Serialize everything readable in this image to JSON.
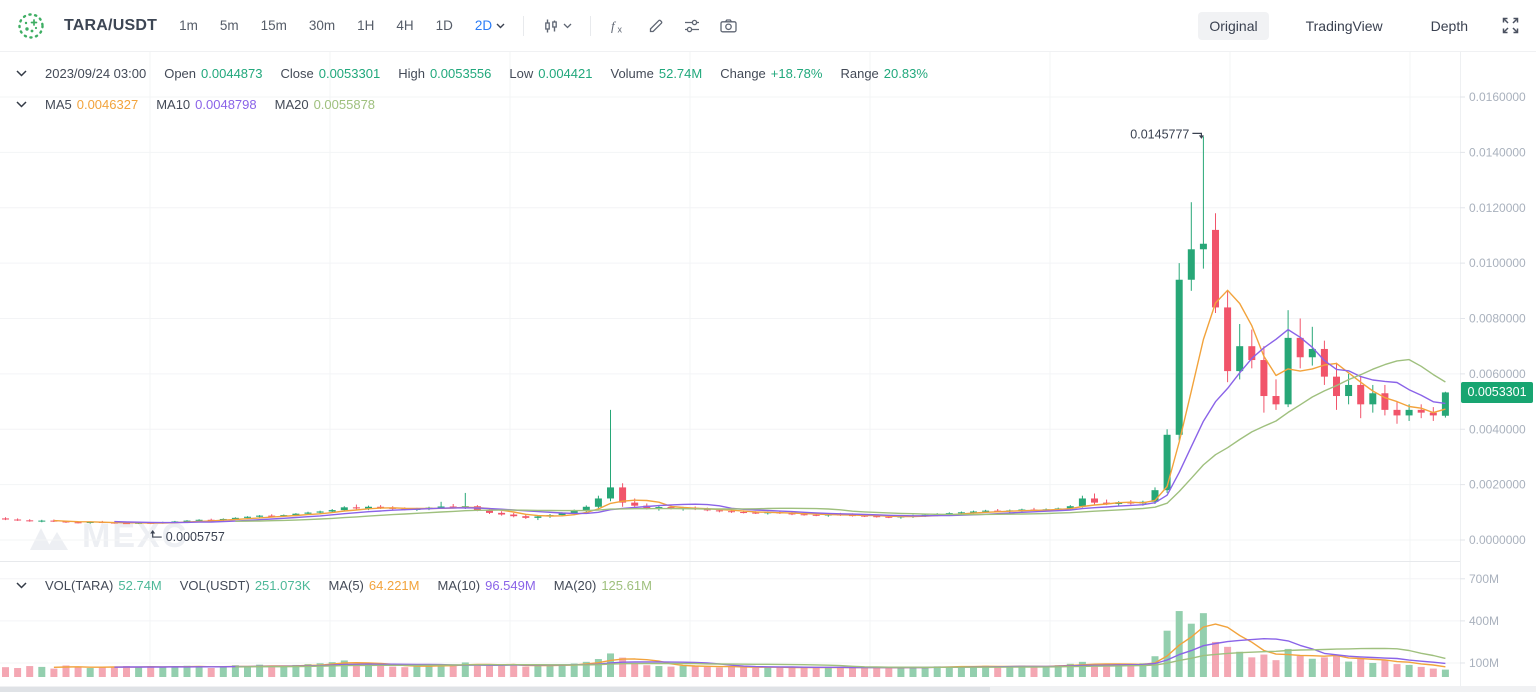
{
  "toolbar": {
    "pair": "TARA/USDT",
    "timeframes": [
      "1m",
      "5m",
      "15m",
      "30m",
      "1H",
      "4H",
      "1D",
      "2D"
    ],
    "selected_timeframe": "2D",
    "view_tabs": [
      {
        "label": "Original",
        "active": true
      },
      {
        "label": "TradingView",
        "active": false
      },
      {
        "label": "Depth",
        "active": false
      }
    ]
  },
  "ohlc_row": {
    "timestamp": "2023/09/24 03:00",
    "items": [
      {
        "label": "Open",
        "value": "0.0044873"
      },
      {
        "label": "Close",
        "value": "0.0053301"
      },
      {
        "label": "High",
        "value": "0.0053556"
      },
      {
        "label": "Low",
        "value": "0.004421"
      },
      {
        "label": "Volume",
        "value": "52.74M"
      },
      {
        "label": "Change",
        "value": "+18.78%"
      },
      {
        "label": "Range",
        "value": "20.83%"
      }
    ]
  },
  "ma_row": {
    "items": [
      {
        "label": "MA5",
        "value": "0.0046327",
        "color": "#f2a33c"
      },
      {
        "label": "MA10",
        "value": "0.0048798",
        "color": "#8a63e8"
      },
      {
        "label": "MA20",
        "value": "0.0055878",
        "color": "#9fc07e"
      }
    ]
  },
  "vol_row": {
    "items": [
      {
        "label": "VOL(TARA)",
        "value": "52.74M",
        "color": "#4db898"
      },
      {
        "label": "VOL(USDT)",
        "value": "251.073K",
        "color": "#4db898"
      },
      {
        "label": "MA(5)",
        "value": "64.221M",
        "color": "#f2a33c"
      },
      {
        "label": "MA(10)",
        "value": "96.549M",
        "color": "#8a63e8"
      },
      {
        "label": "MA(20)",
        "value": "125.61M",
        "color": "#9fc07e"
      }
    ]
  },
  "watermark_text": "MEXC",
  "colors": {
    "up": "#27a777",
    "down": "#f1546a",
    "vol_up": "#93cfae",
    "vol_down": "#f4a7b3",
    "ma5": "#f2a33c",
    "ma10": "#8a63e8",
    "ma20": "#9fc07e",
    "accent_blue": "#2a7cf7",
    "value_green": "#21a87c",
    "badge_green": "#18a571",
    "axis_text": "#a9b1bd",
    "grid": "#f3f4f6"
  },
  "chart_data": {
    "type": "candlestick",
    "title": "TARA/USDT 2D",
    "interval": "2D",
    "price_axis": {
      "min": 0,
      "max": 0.016,
      "ticks": [
        {
          "value": 0.016,
          "label": "0.0160000"
        },
        {
          "value": 0.014,
          "label": "0.0140000"
        },
        {
          "value": 0.012,
          "label": "0.0120000"
        },
        {
          "value": 0.01,
          "label": "0.0100000"
        },
        {
          "value": 0.008,
          "label": "0.0080000"
        },
        {
          "value": 0.006,
          "label": "0.0060000"
        },
        {
          "value": 0.004,
          "label": "0.0040000"
        },
        {
          "value": 0.002,
          "label": "0.0020000"
        },
        {
          "value": 0.0,
          "label": "0.0000000"
        }
      ]
    },
    "volume_axis": {
      "unit": "M",
      "ticks": [
        {
          "value": 700,
          "label": "700M"
        },
        {
          "value": 400,
          "label": "400M"
        },
        {
          "value": 100,
          "label": "100M"
        }
      ]
    },
    "annotations": {
      "high": {
        "label": "0.0145777",
        "value": 0.0145777
      },
      "low": {
        "label": "0.0005757",
        "value": 0.0005757
      }
    },
    "last_price": {
      "value": 0.0053301,
      "label": "0.0053301"
    },
    "ma_overlays": [
      {
        "period": 5,
        "color_key": "ma5"
      },
      {
        "period": 10,
        "color_key": "ma10"
      },
      {
        "period": 20,
        "color_key": "ma20"
      }
    ],
    "candles_format": [
      "open",
      "high",
      "low",
      "close",
      "volume_M"
    ],
    "candles": [
      [
        0.00078,
        0.00082,
        0.00072,
        0.00074,
        70
      ],
      [
        0.00074,
        0.00078,
        0.00069,
        0.00071,
        64
      ],
      [
        0.00071,
        0.00075,
        0.00066,
        0.00068,
        78
      ],
      [
        0.00068,
        0.00073,
        0.00064,
        0.0007,
        72
      ],
      [
        0.0007,
        0.00074,
        0.00065,
        0.00067,
        60
      ],
      [
        0.00067,
        0.0007,
        0.00062,
        0.00064,
        82
      ],
      [
        0.00064,
        0.00068,
        0.0006,
        0.00062,
        70
      ],
      [
        0.00062,
        0.00067,
        0.00059,
        0.00065,
        64
      ],
      [
        0.00065,
        0.00069,
        0.00061,
        0.00063,
        74
      ],
      [
        0.00063,
        0.00066,
        0.00059,
        0.00061,
        68
      ],
      [
        0.00061,
        0.00065,
        0.00058,
        0.0006,
        78
      ],
      [
        0.0006,
        0.00064,
        0.00058,
        0.00062,
        70
      ],
      [
        0.00062,
        0.00064,
        0.0005757,
        0.0006,
        76
      ],
      [
        0.0006,
        0.00066,
        0.00059,
        0.00064,
        68
      ],
      [
        0.00064,
        0.00069,
        0.00062,
        0.00067,
        74
      ],
      [
        0.00067,
        0.00072,
        0.00064,
        0.0007,
        80
      ],
      [
        0.0007,
        0.00075,
        0.00067,
        0.00073,
        76
      ],
      [
        0.00073,
        0.00077,
        0.00069,
        0.00071,
        64
      ],
      [
        0.00071,
        0.00078,
        0.00068,
        0.00076,
        72
      ],
      [
        0.00076,
        0.00082,
        0.00073,
        0.0008,
        84
      ],
      [
        0.0008,
        0.00086,
        0.00077,
        0.00084,
        78
      ],
      [
        0.00084,
        0.0009,
        0.0008,
        0.00088,
        88
      ],
      [
        0.00088,
        0.00093,
        0.00084,
        0.00086,
        70
      ],
      [
        0.00086,
        0.00092,
        0.00083,
        0.0009,
        76
      ],
      [
        0.0009,
        0.00097,
        0.00087,
        0.00095,
        86
      ],
      [
        0.00095,
        0.00102,
        0.00091,
        0.00099,
        92
      ],
      [
        0.00099,
        0.00106,
        0.00095,
        0.00103,
        98
      ],
      [
        0.00103,
        0.00112,
        0.00098,
        0.00108,
        106
      ],
      [
        0.00108,
        0.00122,
        0.00104,
        0.00118,
        118
      ],
      [
        0.00118,
        0.00128,
        0.0011,
        0.00114,
        94
      ],
      [
        0.00114,
        0.00124,
        0.00108,
        0.0012,
        88
      ],
      [
        0.0012,
        0.00126,
        0.00112,
        0.00116,
        80
      ],
      [
        0.00116,
        0.00122,
        0.0011,
        0.00113,
        74
      ],
      [
        0.00113,
        0.00118,
        0.00107,
        0.0011,
        70
      ],
      [
        0.0011,
        0.00116,
        0.00105,
        0.00112,
        78
      ],
      [
        0.00112,
        0.0012,
        0.00108,
        0.00117,
        84
      ],
      [
        0.00117,
        0.00138,
        0.00112,
        0.00121,
        92
      ],
      [
        0.00121,
        0.0013,
        0.00114,
        0.00118,
        78
      ],
      [
        0.00118,
        0.0017,
        0.00112,
        0.00122,
        104
      ],
      [
        0.00122,
        0.00126,
        0.00104,
        0.00108,
        90
      ],
      [
        0.00108,
        0.00112,
        0.00094,
        0.00098,
        84
      ],
      [
        0.00098,
        0.00104,
        0.00088,
        0.00092,
        80
      ],
      [
        0.00092,
        0.00098,
        0.00082,
        0.00086,
        86
      ],
      [
        0.00086,
        0.00092,
        0.00076,
        0.0008,
        74
      ],
      [
        0.0008,
        0.00088,
        0.00072,
        0.00085,
        82
      ],
      [
        0.00085,
        0.00094,
        0.0008,
        0.0009,
        86
      ],
      [
        0.0009,
        0.001,
        0.00085,
        0.00096,
        90
      ],
      [
        0.00096,
        0.0011,
        0.0009,
        0.00105,
        96
      ],
      [
        0.00105,
        0.00125,
        0.00098,
        0.0012,
        108
      ],
      [
        0.0012,
        0.0016,
        0.00112,
        0.0015,
        128
      ],
      [
        0.0015,
        0.0047,
        0.0014,
        0.0019,
        168
      ],
      [
        0.0019,
        0.00205,
        0.0012,
        0.00135,
        138
      ],
      [
        0.00135,
        0.0015,
        0.00118,
        0.00124,
        98
      ],
      [
        0.00124,
        0.00132,
        0.0011,
        0.00115,
        84
      ],
      [
        0.00115,
        0.00124,
        0.00106,
        0.00119,
        78
      ],
      [
        0.00119,
        0.00125,
        0.0011,
        0.00113,
        74
      ],
      [
        0.00113,
        0.0012,
        0.00106,
        0.00116,
        80
      ],
      [
        0.00116,
        0.00121,
        0.00108,
        0.00111,
        76
      ],
      [
        0.00111,
        0.00117,
        0.00104,
        0.00107,
        72
      ],
      [
        0.00107,
        0.00113,
        0.001,
        0.00104,
        68
      ],
      [
        0.00104,
        0.0011,
        0.00098,
        0.00101,
        74
      ],
      [
        0.00101,
        0.00107,
        0.00096,
        0.00099,
        70
      ],
      [
        0.00099,
        0.00104,
        0.00094,
        0.00097,
        66
      ],
      [
        0.00097,
        0.00103,
        0.00092,
        0.001,
        72
      ],
      [
        0.001,
        0.00105,
        0.00094,
        0.00096,
        68
      ],
      [
        0.00096,
        0.00101,
        0.0009,
        0.00093,
        64
      ],
      [
        0.00093,
        0.00099,
        0.00088,
        0.00091,
        70
      ],
      [
        0.00091,
        0.00097,
        0.00086,
        0.00089,
        66
      ],
      [
        0.00089,
        0.00095,
        0.00084,
        0.00092,
        72
      ],
      [
        0.00092,
        0.00098,
        0.00087,
        0.0009,
        68
      ],
      [
        0.0009,
        0.00096,
        0.00085,
        0.00088,
        64
      ],
      [
        0.00088,
        0.00094,
        0.00083,
        0.00086,
        70
      ],
      [
        0.00086,
        0.00092,
        0.00081,
        0.00084,
        66
      ],
      [
        0.00084,
        0.0009,
        0.00079,
        0.00082,
        62
      ],
      [
        0.00082,
        0.00088,
        0.00077,
        0.00085,
        68
      ],
      [
        0.00085,
        0.00091,
        0.0008,
        0.00088,
        74
      ],
      [
        0.00088,
        0.00094,
        0.00083,
        0.00091,
        70
      ],
      [
        0.00091,
        0.00097,
        0.00086,
        0.00094,
        76
      ],
      [
        0.00094,
        0.001,
        0.00089,
        0.00097,
        72
      ],
      [
        0.00097,
        0.00103,
        0.00092,
        0.001,
        78
      ],
      [
        0.001,
        0.00106,
        0.00095,
        0.00103,
        74
      ],
      [
        0.00103,
        0.00109,
        0.00098,
        0.00106,
        80
      ],
      [
        0.00106,
        0.00112,
        0.00101,
        0.00104,
        70
      ],
      [
        0.00104,
        0.0011,
        0.00099,
        0.00107,
        76
      ],
      [
        0.00107,
        0.00113,
        0.00102,
        0.0011,
        82
      ],
      [
        0.0011,
        0.00116,
        0.00105,
        0.00108,
        72
      ],
      [
        0.00108,
        0.00114,
        0.00103,
        0.00111,
        78
      ],
      [
        0.00111,
        0.00117,
        0.00106,
        0.00114,
        84
      ],
      [
        0.00114,
        0.00126,
        0.00109,
        0.00122,
        94
      ],
      [
        0.00122,
        0.0016,
        0.00117,
        0.0015,
        108
      ],
      [
        0.0015,
        0.00168,
        0.00128,
        0.00135,
        92
      ],
      [
        0.00135,
        0.00146,
        0.00126,
        0.0013,
        84
      ],
      [
        0.0013,
        0.0014,
        0.00122,
        0.00136,
        88
      ],
      [
        0.00136,
        0.00144,
        0.00128,
        0.00132,
        86
      ],
      [
        0.00132,
        0.00142,
        0.00124,
        0.00138,
        98
      ],
      [
        0.00138,
        0.0019,
        0.0013,
        0.0018,
        148
      ],
      [
        0.0018,
        0.004,
        0.0017,
        0.0038,
        330
      ],
      [
        0.0038,
        0.01,
        0.0036,
        0.0094,
        470
      ],
      [
        0.0094,
        0.0122,
        0.009,
        0.0105,
        380
      ],
      [
        0.0105,
        0.0145777,
        0.0098,
        0.0107,
        455
      ],
      [
        0.0112,
        0.0118,
        0.0082,
        0.0084,
        250
      ],
      [
        0.0084,
        0.009,
        0.0057,
        0.0061,
        215
      ],
      [
        0.0061,
        0.0078,
        0.0058,
        0.007,
        180
      ],
      [
        0.007,
        0.0076,
        0.0062,
        0.0065,
        140
      ],
      [
        0.0065,
        0.007,
        0.0046,
        0.0052,
        160
      ],
      [
        0.0052,
        0.0058,
        0.0047,
        0.0049,
        120
      ],
      [
        0.0049,
        0.0083,
        0.0048,
        0.0073,
        200
      ],
      [
        0.0073,
        0.008,
        0.0062,
        0.0066,
        150
      ],
      [
        0.0066,
        0.0077,
        0.0063,
        0.0069,
        130
      ],
      [
        0.0069,
        0.0072,
        0.0056,
        0.0059,
        140
      ],
      [
        0.0059,
        0.0064,
        0.0047,
        0.0052,
        150
      ],
      [
        0.0052,
        0.006,
        0.0049,
        0.0056,
        110
      ],
      [
        0.0056,
        0.0059,
        0.0044,
        0.0049,
        130
      ],
      [
        0.0049,
        0.0056,
        0.0046,
        0.0053,
        100
      ],
      [
        0.0053,
        0.0056,
        0.0045,
        0.0047,
        118
      ],
      [
        0.0047,
        0.005,
        0.0042,
        0.0045,
        92
      ],
      [
        0.0045,
        0.0049,
        0.0043,
        0.0047,
        86
      ],
      [
        0.0047,
        0.0049,
        0.0044,
        0.0046,
        72
      ],
      [
        0.0046,
        0.0048,
        0.0043,
        0.0045,
        60
      ],
      [
        0.0044873,
        0.0053556,
        0.004421,
        0.0053301,
        52.74
      ]
    ]
  }
}
